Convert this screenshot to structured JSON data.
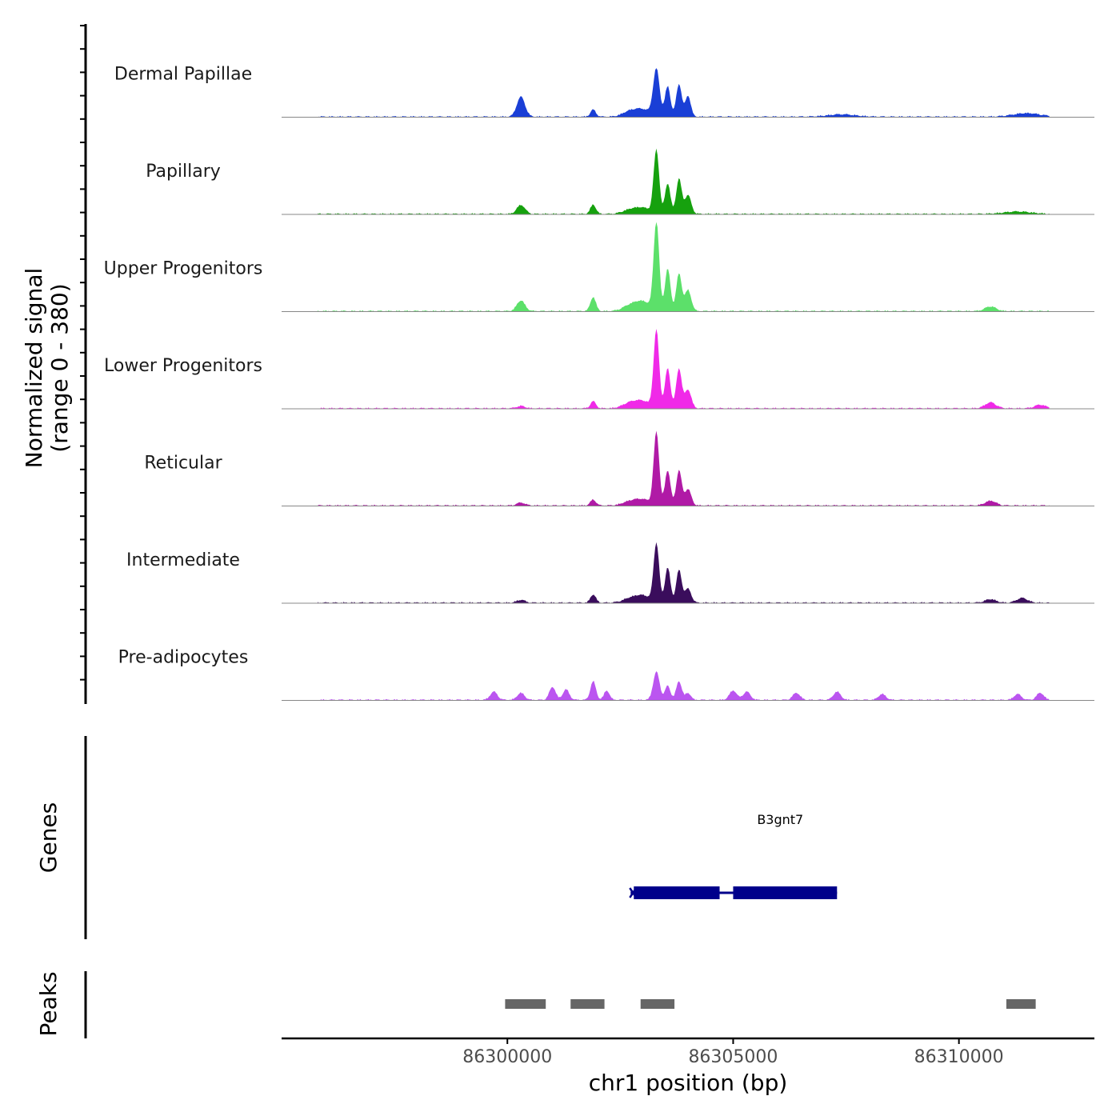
{
  "chart_data": {
    "type": "area",
    "title": "",
    "ylabel_line1": "Normalized signal",
    "ylabel_line2": "(range 0 - 380)",
    "y_range": [
      0,
      380
    ],
    "xlabel": "chr1 position (bp)",
    "x_range": [
      86295000,
      86313000
    ],
    "x_ticks": [
      86300000,
      86305000,
      86310000
    ],
    "x_tick_labels": [
      "86300000",
      "86305000",
      "86310000"
    ],
    "series": [
      {
        "name": "Dermal Papillae",
        "color": "#1a3fd6",
        "peaks": [
          [
            86300300,
            85,
            90
          ],
          [
            86301900,
            30,
            60
          ],
          [
            86303000,
            30,
            180
          ],
          [
            86303300,
            200,
            70
          ],
          [
            86303550,
            130,
            60
          ],
          [
            86303800,
            140,
            60
          ],
          [
            86304000,
            90,
            60
          ],
          [
            86302700,
            20,
            160
          ],
          [
            86307400,
            10,
            300
          ],
          [
            86311500,
            15,
            300
          ]
        ]
      },
      {
        "name": "Papillary",
        "color": "#16a10e",
        "peaks": [
          [
            86300300,
            38,
            90
          ],
          [
            86301900,
            40,
            60
          ],
          [
            86303000,
            25,
            180
          ],
          [
            86303300,
            270,
            60
          ],
          [
            86303550,
            130,
            60
          ],
          [
            86303800,
            150,
            60
          ],
          [
            86304000,
            80,
            70
          ],
          [
            86302700,
            15,
            160
          ],
          [
            86311300,
            10,
            300
          ]
        ]
      },
      {
        "name": "Upper Progenitors",
        "color": "#5ce06a",
        "peaks": [
          [
            86300300,
            45,
            90
          ],
          [
            86301900,
            60,
            60
          ],
          [
            86303000,
            40,
            180
          ],
          [
            86303300,
            380,
            60
          ],
          [
            86303550,
            180,
            60
          ],
          [
            86303800,
            160,
            60
          ],
          [
            86304000,
            90,
            70
          ],
          [
            86302700,
            20,
            160
          ],
          [
            86310700,
            20,
            120
          ]
        ]
      },
      {
        "name": "Lower Progenitors",
        "color": "#f029e8",
        "peaks": [
          [
            86300300,
            10,
            90
          ],
          [
            86301900,
            30,
            60
          ],
          [
            86303000,
            30,
            180
          ],
          [
            86303300,
            330,
            60
          ],
          [
            86303550,
            170,
            60
          ],
          [
            86303800,
            170,
            60
          ],
          [
            86304000,
            80,
            70
          ],
          [
            86302700,
            20,
            160
          ],
          [
            86310700,
            25,
            120
          ],
          [
            86311800,
            15,
            120
          ]
        ]
      },
      {
        "name": "Reticular",
        "color": "#b01aa6",
        "peaks": [
          [
            86300300,
            12,
            90
          ],
          [
            86301900,
            25,
            60
          ],
          [
            86303000,
            25,
            180
          ],
          [
            86303300,
            310,
            60
          ],
          [
            86303550,
            150,
            60
          ],
          [
            86303800,
            150,
            60
          ],
          [
            86304000,
            70,
            70
          ],
          [
            86302700,
            15,
            160
          ],
          [
            86310700,
            20,
            120
          ]
        ]
      },
      {
        "name": "Intermediate",
        "color": "#3a0d5c",
        "peaks": [
          [
            86300300,
            12,
            90
          ],
          [
            86301900,
            35,
            60
          ],
          [
            86303000,
            30,
            180
          ],
          [
            86303300,
            250,
            60
          ],
          [
            86303550,
            150,
            60
          ],
          [
            86303800,
            140,
            60
          ],
          [
            86304000,
            60,
            70
          ],
          [
            86302700,
            15,
            160
          ],
          [
            86310700,
            15,
            120
          ],
          [
            86311400,
            20,
            120
          ]
        ]
      },
      {
        "name": "Pre-adipocytes",
        "color": "#bb55f0",
        "peaks": [
          [
            86299700,
            35,
            80
          ],
          [
            86300300,
            30,
            80
          ],
          [
            86301000,
            55,
            70
          ],
          [
            86301300,
            45,
            70
          ],
          [
            86301900,
            80,
            60
          ],
          [
            86302200,
            40,
            60
          ],
          [
            86303300,
            120,
            70
          ],
          [
            86303550,
            60,
            60
          ],
          [
            86303800,
            80,
            60
          ],
          [
            86304000,
            30,
            60
          ],
          [
            86305000,
            40,
            80
          ],
          [
            86305300,
            35,
            80
          ],
          [
            86306400,
            30,
            80
          ],
          [
            86307300,
            35,
            80
          ],
          [
            86308300,
            25,
            80
          ],
          [
            86311300,
            25,
            80
          ],
          [
            86311800,
            30,
            80
          ]
        ]
      }
    ],
    "genes_track_label": "Genes",
    "genes": [
      {
        "name": "B3gnt7",
        "start": 86302800,
        "end": 86307300,
        "exons": [
          [
            86302800,
            86304700
          ],
          [
            86305000,
            86307300
          ]
        ],
        "color": "#00008b"
      }
    ],
    "peaks_track_label": "Peaks",
    "peak_color": "#666666",
    "peak_regions": [
      [
        86299950,
        86300850
      ],
      [
        86301400,
        86302150
      ],
      [
        86302950,
        86303700
      ],
      [
        86311050,
        86311700
      ]
    ]
  }
}
